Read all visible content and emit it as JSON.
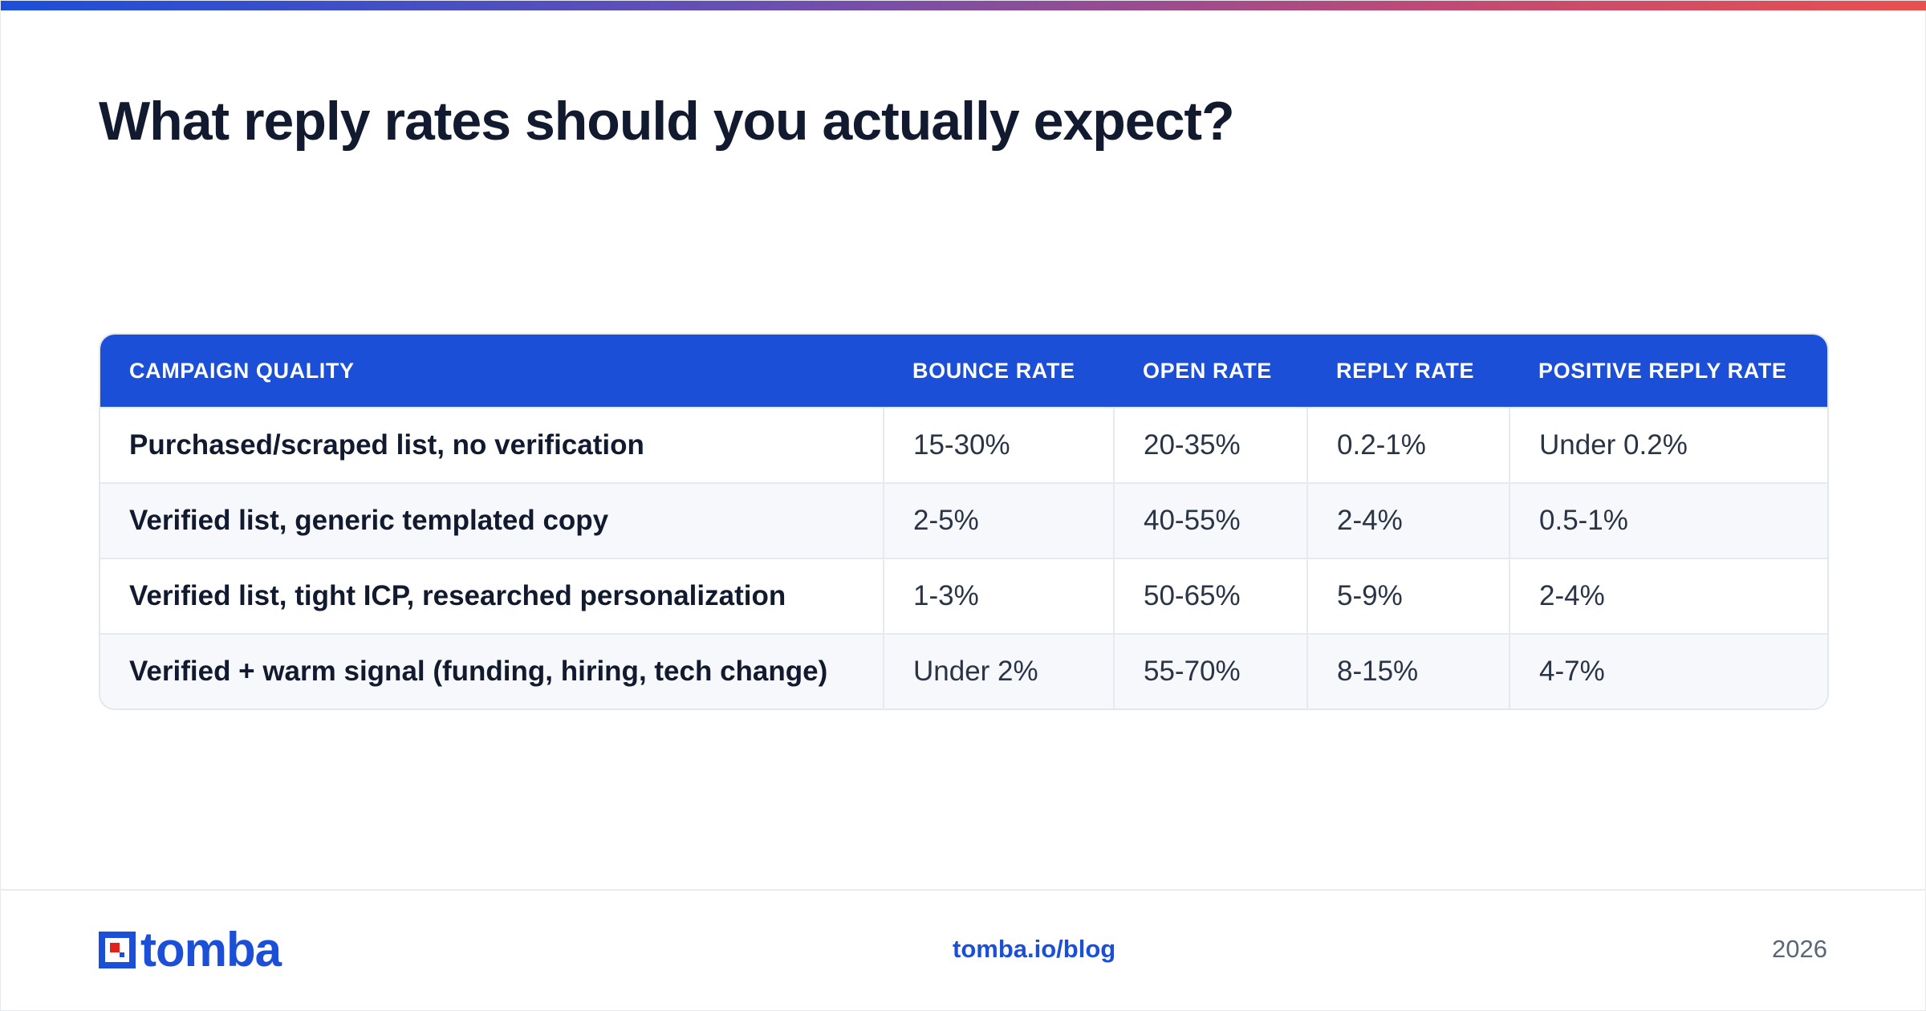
{
  "header": {
    "title": "What reply rates should you actually expect?",
    "accent_gradient": [
      "#1c4fd8",
      "#6b4fb0",
      "#c04a74",
      "#e9504f"
    ]
  },
  "table": {
    "columns": [
      "CAMPAIGN QUALITY",
      "BOUNCE RATE",
      "OPEN RATE",
      "REPLY RATE",
      "POSITIVE REPLY RATE"
    ],
    "rows": [
      [
        "Purchased/scraped list, no verification",
        "15-30%",
        "20-35%",
        "0.2-1%",
        "Under 0.2%"
      ],
      [
        "Verified list, generic templated copy",
        "2-5%",
        "40-55%",
        "2-4%",
        "0.5-1%"
      ],
      [
        "Verified list, tight ICP, researched personalization",
        "1-3%",
        "50-65%",
        "5-9%",
        "2-4%"
      ],
      [
        "Verified + warm signal (funding, hiring, tech change)",
        "Under 2%",
        "55-70%",
        "8-15%",
        "4-7%"
      ]
    ],
    "header_color": "#1c4fd8"
  },
  "footer": {
    "logo_text": "tomba",
    "logo_icon": "tomba-logo-icon",
    "link": "tomba.io/blog",
    "year": "2026"
  },
  "colors": {
    "brand_blue": "#1c4fd8",
    "brand_red": "#e2231a",
    "text_dark": "#111a2e"
  }
}
